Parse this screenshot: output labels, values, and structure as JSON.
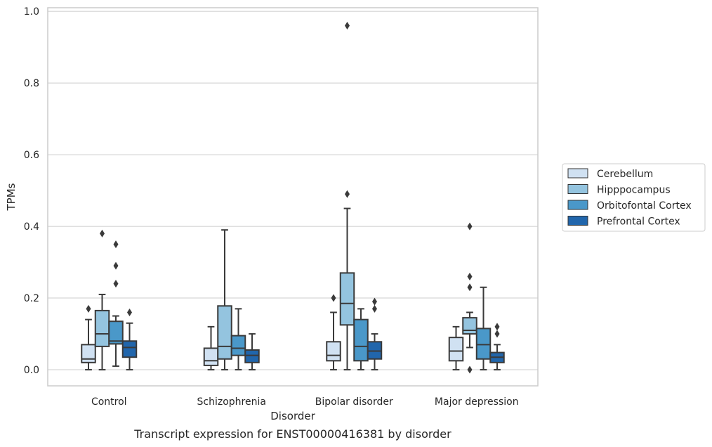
{
  "chart_data": {
    "type": "box",
    "caption": "Transcript expression for ENST00000416381 by disorder",
    "xlabel": "Disorder",
    "ylabel": "TPMs",
    "ylim": [
      -0.045,
      1.01
    ],
    "yticks": [
      "0.0",
      "0.2",
      "0.4",
      "0.6",
      "0.8",
      "1.0"
    ],
    "grid": true,
    "legend_position": "right",
    "categories": [
      "Control",
      "Schizophrenia",
      "Bipolar disorder",
      "Major depression"
    ],
    "series": [
      {
        "name": "Cerebellum",
        "color": "#d0e1f2",
        "boxes": [
          {
            "whisker_low": 0.0,
            "q1": 0.02,
            "median": 0.03,
            "q3": 0.07,
            "whisker_high": 0.14,
            "outliers": [
              0.17
            ]
          },
          {
            "whisker_low": 0.0,
            "q1": 0.012,
            "median": 0.025,
            "q3": 0.06,
            "whisker_high": 0.12,
            "outliers": []
          },
          {
            "whisker_low": 0.0,
            "q1": 0.025,
            "median": 0.04,
            "q3": 0.078,
            "whisker_high": 0.16,
            "outliers": [
              0.2
            ]
          },
          {
            "whisker_low": 0.0,
            "q1": 0.025,
            "median": 0.052,
            "q3": 0.09,
            "whisker_high": 0.12,
            "outliers": []
          }
        ]
      },
      {
        "name": "Hipppocampus",
        "color": "#94c4df",
        "boxes": [
          {
            "whisker_low": 0.0,
            "q1": 0.065,
            "median": 0.1,
            "q3": 0.165,
            "whisker_high": 0.21,
            "outliers": [
              0.38
            ]
          },
          {
            "whisker_low": 0.0,
            "q1": 0.03,
            "median": 0.065,
            "q3": 0.178,
            "whisker_high": 0.39,
            "outliers": []
          },
          {
            "whisker_low": 0.0,
            "q1": 0.125,
            "median": 0.185,
            "q3": 0.27,
            "whisker_high": 0.45,
            "outliers": [
              0.49,
              0.96
            ]
          },
          {
            "whisker_low": 0.062,
            "q1": 0.1,
            "median": 0.11,
            "q3": 0.145,
            "whisker_high": 0.16,
            "outliers": [
              0.0,
              0.23,
              0.26,
              0.4
            ]
          }
        ]
      },
      {
        "name": "Orbitofontal Cortex",
        "color": "#4a98c9",
        "boxes": [
          {
            "whisker_low": 0.01,
            "q1": 0.072,
            "median": 0.08,
            "q3": 0.135,
            "whisker_high": 0.15,
            "outliers": [
              0.24,
              0.29,
              0.35
            ]
          },
          {
            "whisker_low": 0.0,
            "q1": 0.04,
            "median": 0.06,
            "q3": 0.095,
            "whisker_high": 0.17,
            "outliers": []
          },
          {
            "whisker_low": 0.0,
            "q1": 0.025,
            "median": 0.065,
            "q3": 0.14,
            "whisker_high": 0.17,
            "outliers": []
          },
          {
            "whisker_low": 0.0,
            "q1": 0.03,
            "median": 0.07,
            "q3": 0.115,
            "whisker_high": 0.23,
            "outliers": []
          }
        ]
      },
      {
        "name": "Prefrontal Cortex",
        "color": "#2166ac",
        "boxes": [
          {
            "whisker_low": 0.0,
            "q1": 0.035,
            "median": 0.062,
            "q3": 0.08,
            "whisker_high": 0.13,
            "outliers": [
              0.16
            ]
          },
          {
            "whisker_low": 0.0,
            "q1": 0.02,
            "median": 0.04,
            "q3": 0.055,
            "whisker_high": 0.1,
            "outliers": []
          },
          {
            "whisker_low": 0.0,
            "q1": 0.03,
            "median": 0.052,
            "q3": 0.078,
            "whisker_high": 0.1,
            "outliers": [
              0.17,
              0.19
            ]
          },
          {
            "whisker_low": 0.0,
            "q1": 0.02,
            "median": 0.035,
            "q3": 0.048,
            "whisker_high": 0.07,
            "outliers": [
              0.1,
              0.12
            ]
          }
        ]
      }
    ]
  }
}
